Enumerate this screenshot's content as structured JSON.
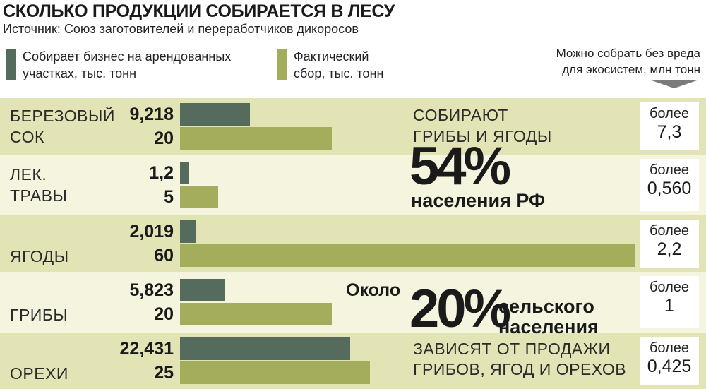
{
  "title": "СКОЛЬКО ПРОДУКЦИИ СОБИРАЕТСЯ В ЛЕСУ",
  "source": "Источник: Союз заготовителей и переработчиков дикоросов",
  "legend": {
    "series1_line1": "Собирает бизнес на арендованных",
    "series1_line2": "участках, тыс. тонн",
    "series2_line1": "Фактический",
    "series2_line2": "сбор, тыс. тонн",
    "note_line1": "Можно собрать без вреда",
    "note_line2": "для экосистем, млн тонн"
  },
  "colors": {
    "series1": "#546b5e",
    "series2": "#a4ad5b",
    "band_dark": "#e3e4b6",
    "band_light": "#f4f4df",
    "arrow": "#7a7a7a"
  },
  "rows": [
    {
      "label1": "БЕРЕЗОВЫЙ",
      "label2": "СОК",
      "v1_text": "9,218",
      "v2_text": "20",
      "box_a": "более",
      "box_b": "7,3"
    },
    {
      "label1": "ЛЕК.",
      "label2": "ТРАВЫ",
      "v1_text": "1,2",
      "v2_text": "5",
      "box_a": "более",
      "box_b": "0,560"
    },
    {
      "label1": "ЯГОДЫ",
      "label2": "",
      "v1_text": "2,019",
      "v2_text": "60",
      "box_a": "более",
      "box_b": "2,2"
    },
    {
      "label1": "ГРИБЫ",
      "label2": "",
      "v1_text": "5,823",
      "v2_text": "20",
      "box_a": "более",
      "box_b": "1"
    },
    {
      "label1": "ОРЕХИ",
      "label2": "",
      "v1_text": "22,431",
      "v2_text": "25",
      "box_a": "более",
      "box_b": "0,425"
    }
  ],
  "callout1": {
    "top_line1": "СОБИРАЮТ",
    "top_line2": "ГРИБЫ И ЯГОДЫ",
    "big": "54%",
    "bottom": "населения РФ"
  },
  "callout2": {
    "prefix": "Около",
    "big": "20%",
    "side_line1": "сельского",
    "side_line2": "населения",
    "bottom_line1": "ЗАВИСЯТ ОТ ПРОДАЖИ",
    "bottom_line2": "ГРИБОВ, ЯГОД И ОРЕХОВ"
  },
  "chart_data": {
    "type": "bar",
    "orientation": "horizontal",
    "categories": [
      "БЕРЕЗОВЫЙ СОК",
      "ЛЕК. ТРАВЫ",
      "ЯГОДЫ",
      "ГРИБЫ",
      "ОРЕХИ"
    ],
    "series": [
      {
        "name": "Собирает бизнес на арендованных участках, тыс. тонн",
        "values": [
          9.218,
          1.2,
          2.019,
          5.823,
          22.431
        ]
      },
      {
        "name": "Фактический сбор, тыс. тонн",
        "values": [
          20,
          5,
          60,
          20,
          25
        ]
      }
    ],
    "xlim": [
      0,
      60
    ],
    "extra_column": {
      "name": "Можно собрать без вреда для экосистем, млн тонн",
      "values": [
        "более 7,3",
        "более 0,560",
        "более 2,2",
        "более 1",
        "более 0,425"
      ]
    },
    "grid": false,
    "legend_position": "top"
  }
}
